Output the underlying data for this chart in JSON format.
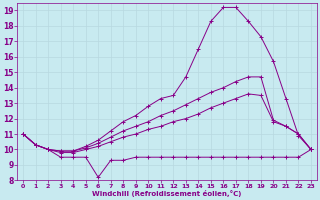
{
  "xlabel": "Windchill (Refroidissement éolien,°C)",
  "xlim": [
    -0.5,
    23.5
  ],
  "ylim": [
    8,
    19.5
  ],
  "xticks": [
    0,
    1,
    2,
    3,
    4,
    5,
    6,
    7,
    8,
    9,
    10,
    11,
    12,
    13,
    14,
    15,
    16,
    17,
    18,
    19,
    20,
    21,
    22,
    23
  ],
  "yticks": [
    8,
    9,
    10,
    11,
    12,
    13,
    14,
    15,
    16,
    17,
    18,
    19
  ],
  "background_color": "#c8eaf0",
  "grid_color": "#b8d8e0",
  "line_color": "#880088",
  "lines": [
    {
      "x": [
        0,
        1,
        2,
        3,
        4,
        5,
        6,
        7,
        8,
        9,
        10,
        11,
        12,
        13,
        14,
        15,
        16,
        17,
        18,
        19,
        20,
        21,
        22,
        23
      ],
      "y": [
        11,
        10.3,
        10,
        9.5,
        9.5,
        9.5,
        8.2,
        9.3,
        9.3,
        9.5,
        9.5,
        9.5,
        9.5,
        9.5,
        9.5,
        9.5,
        9.5,
        9.5,
        9.5,
        9.5,
        9.5,
        9.5,
        9.5,
        10
      ]
    },
    {
      "x": [
        0,
        1,
        2,
        3,
        4,
        5,
        6,
        7,
        8,
        9,
        10,
        11,
        12,
        13,
        14,
        15,
        16,
        17,
        18,
        19,
        20,
        21,
        22,
        23
      ],
      "y": [
        11,
        10.3,
        10,
        9.8,
        9.8,
        10.0,
        10.2,
        10.5,
        10.8,
        11.0,
        11.3,
        11.5,
        11.8,
        12.0,
        12.3,
        12.7,
        13.0,
        13.3,
        13.6,
        13.5,
        11.8,
        11.5,
        11.0,
        10
      ]
    },
    {
      "x": [
        0,
        1,
        2,
        3,
        4,
        5,
        6,
        7,
        8,
        9,
        10,
        11,
        12,
        13,
        14,
        15,
        16,
        17,
        18,
        19,
        20,
        21,
        22,
        23
      ],
      "y": [
        11,
        10.3,
        10,
        9.9,
        9.9,
        10.1,
        10.4,
        10.8,
        11.2,
        11.5,
        11.8,
        12.2,
        12.5,
        12.9,
        13.3,
        13.7,
        14.0,
        14.4,
        14.7,
        14.7,
        11.9,
        11.5,
        11.0,
        10
      ]
    },
    {
      "x": [
        0,
        1,
        2,
        3,
        4,
        5,
        6,
        7,
        8,
        9,
        10,
        11,
        12,
        13,
        14,
        15,
        16,
        17,
        18,
        19,
        20,
        21,
        22,
        23
      ],
      "y": [
        11,
        10.3,
        10,
        9.9,
        9.9,
        10.2,
        10.6,
        11.2,
        11.8,
        12.2,
        12.8,
        13.3,
        13.5,
        14.7,
        16.5,
        18.3,
        19.2,
        19.2,
        18.3,
        17.3,
        15.7,
        13.3,
        10.9,
        10
      ]
    }
  ]
}
